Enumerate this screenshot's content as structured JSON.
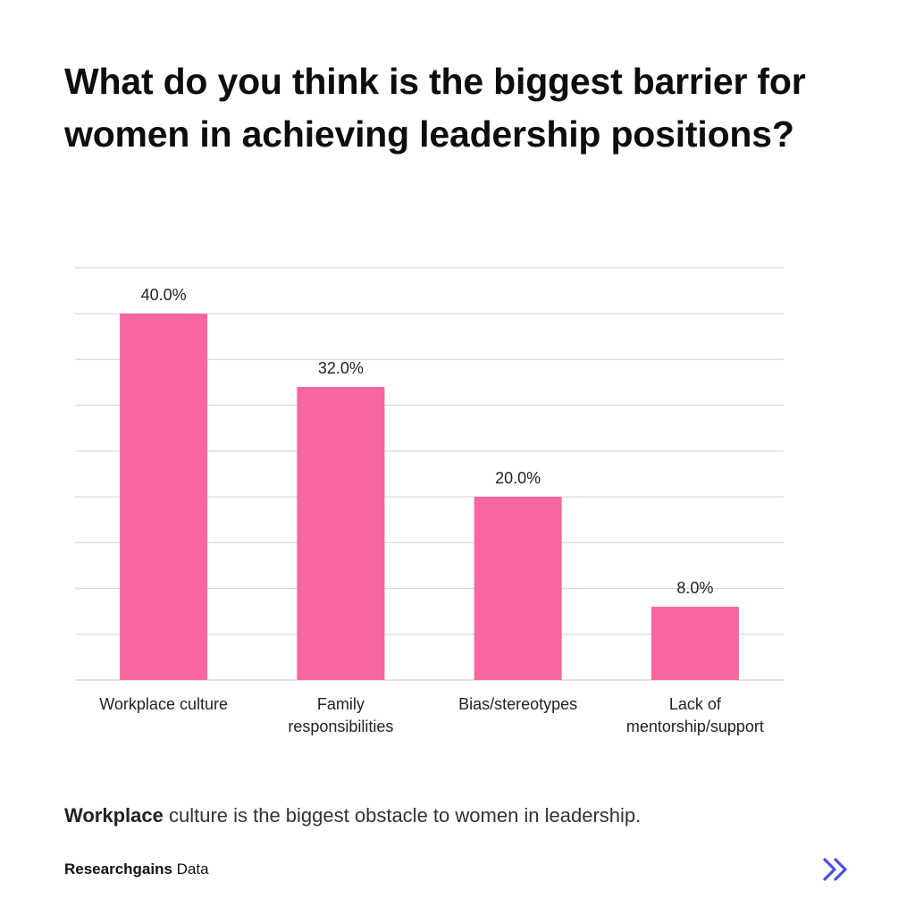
{
  "page": {
    "title": "What do you think is the biggest barrier for women in achieving leadership positions?",
    "caption_bold": "Workplace",
    "caption_rest": " culture is the biggest obstacle to women in leadership.",
    "source_bold": "Researchgains",
    "source_rest": " Data",
    "nav_icon": "double-chevron-right-icon",
    "colors": {
      "bar": "#f766a0",
      "grid": "#d9d9d9",
      "accent": "#4b4fe0",
      "label": "#222222"
    }
  },
  "chart_data": {
    "type": "bar",
    "title": "What do you think is the biggest barrier for women in achieving leadership positions?",
    "categories": [
      [
        "Workplace culture"
      ],
      [
        "Family",
        "responsibilities"
      ],
      [
        "Bias/stereotypes"
      ],
      [
        "Lack of",
        "mentorship/support"
      ]
    ],
    "values": [
      40.0,
      32.0,
      20.0,
      8.0
    ],
    "value_labels": [
      "40.0%",
      "32.0%",
      "20.0%",
      "8.0%"
    ],
    "unit": "%",
    "ylim": [
      0,
      45
    ],
    "grid_step": 5,
    "grid": true,
    "y_axis_labels_shown": false,
    "legend": "none"
  }
}
